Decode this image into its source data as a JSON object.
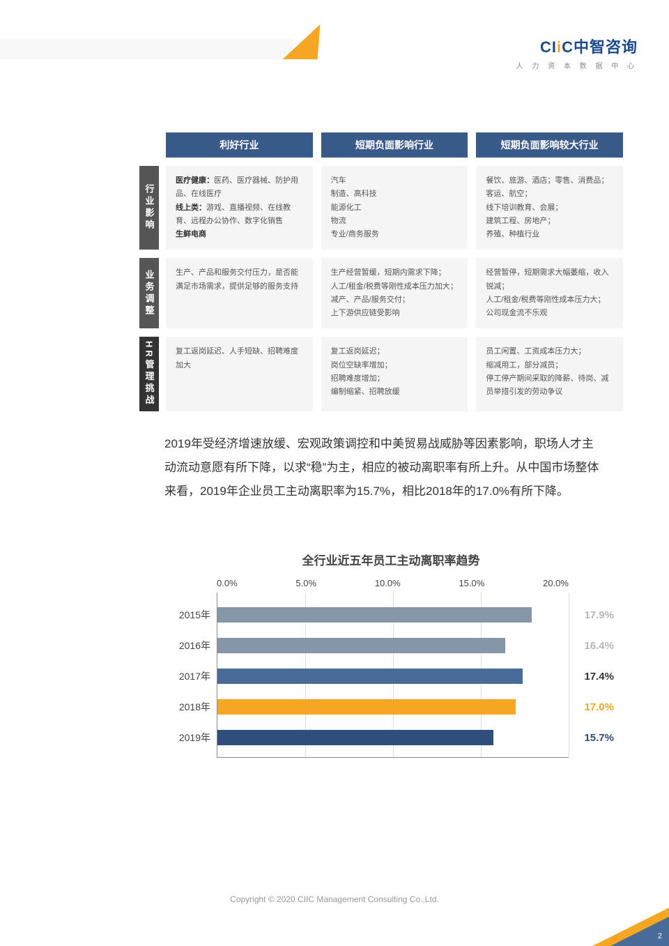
{
  "logo": {
    "text_pre": "CI",
    "text_o": "i",
    "text_post": "C",
    "cn": "中智咨询",
    "sub": "人 力 资 本 数 据 中 心"
  },
  "matrix": {
    "headers": [
      "利好行业",
      "短期负面影响行业",
      "短期负面影响较大行业"
    ],
    "header_bg": "#3a5a8a",
    "rows": [
      {
        "label": "行业影响",
        "label_style": "norm",
        "cells": [
          [
            "<b>医疗健康：</b>医药、医疗器械、防护用品、在线医疗",
            "<b>线上类：</b>游戏、直播视频、在线教育、远程办公协作、数字化销售",
            "<b>生鲜电商</b>"
          ],
          [
            "汽车",
            "制造、高科技",
            "能源化工",
            "物流",
            "专业/商务服务"
          ],
          [
            "餐饮、旅游、酒店；零售、消费品；",
            "客运、航空；",
            "线下培训教育、会展；",
            "建筑工程、房地产；",
            "养殖、种植行业"
          ]
        ]
      },
      {
        "label": "业务调整",
        "label_style": "norm",
        "cells": [
          [
            "生产、产品和服务交付压力，是否能满足市场需求，提供足够的服务支持"
          ],
          [
            "生产经营暂缓，短期内需求下降；",
            "人工/租金/税费等刚性成本压力加大；",
            "减产、产品/服务交付；",
            "上下游供应链受影响"
          ],
          [
            "经营暂停，短期需求大幅萎缩，收入锐减；",
            "人工/租金/税费等刚性成本压力大；",
            "公司现金流不乐观"
          ]
        ]
      },
      {
        "label": "HR管理挑战",
        "label_style": "dark",
        "cells": [
          [
            "复工返岗延迟、人手短缺、招聘难度加大"
          ],
          [
            "复工返岗延迟；",
            "岗位空缺率增加；",
            "招聘难度增加；",
            "编制缩紧、招聘放缓"
          ],
          [
            "员工闲置、工资成本压力大；",
            "缩减用工，部分减员；",
            "停工停产期间采取的降薪、待岗、减员举措引发的劳动争议"
          ]
        ]
      }
    ]
  },
  "paragraph": "2019年受经济增速放缓、宏观政策调控和中美贸易战威胁等因素影响，职场人才主动流动意愿有所下降，以求“稳”为主，相应的被动离职率有所上升。从中国市场整体来看，2019年企业员工主动离职率为15.7%，相比2018年的17.0%有所下降。",
  "chart": {
    "title": "全行业近五年员工主动离职率趋势",
    "type": "horizontal-bar",
    "x_ticks": [
      "0.0%",
      "5.0%",
      "10.0%",
      "15.0%",
      "20.0%"
    ],
    "x_max": 20.0,
    "bars": [
      {
        "label": "2015年",
        "value": 17.9,
        "value_text": "17.9%",
        "color": "#8795a8",
        "label_color": "#b7b7b7"
      },
      {
        "label": "2016年",
        "value": 16.4,
        "value_text": "16.4%",
        "color": "#8795a8",
        "label_color": "#b7b7b7"
      },
      {
        "label": "2017年",
        "value": 17.4,
        "value_text": "17.4%",
        "color": "#4a6a9a",
        "label_color": "#333333"
      },
      {
        "label": "2018年",
        "value": 17.0,
        "value_text": "17.0%",
        "color": "#f5a623",
        "label_color": "#f5a623"
      },
      {
        "label": "2019年",
        "value": 15.7,
        "value_text": "15.7%",
        "color": "#2f4e7a",
        "label_color": "#2f4e7a"
      }
    ],
    "grid_color": "#dddddd",
    "axis_color": "#888888",
    "background_color": "#ffffff"
  },
  "footer": {
    "copyright": "Copyright © 2020 CIIC Management Consulting Co.,Ltd.",
    "page": "2"
  }
}
